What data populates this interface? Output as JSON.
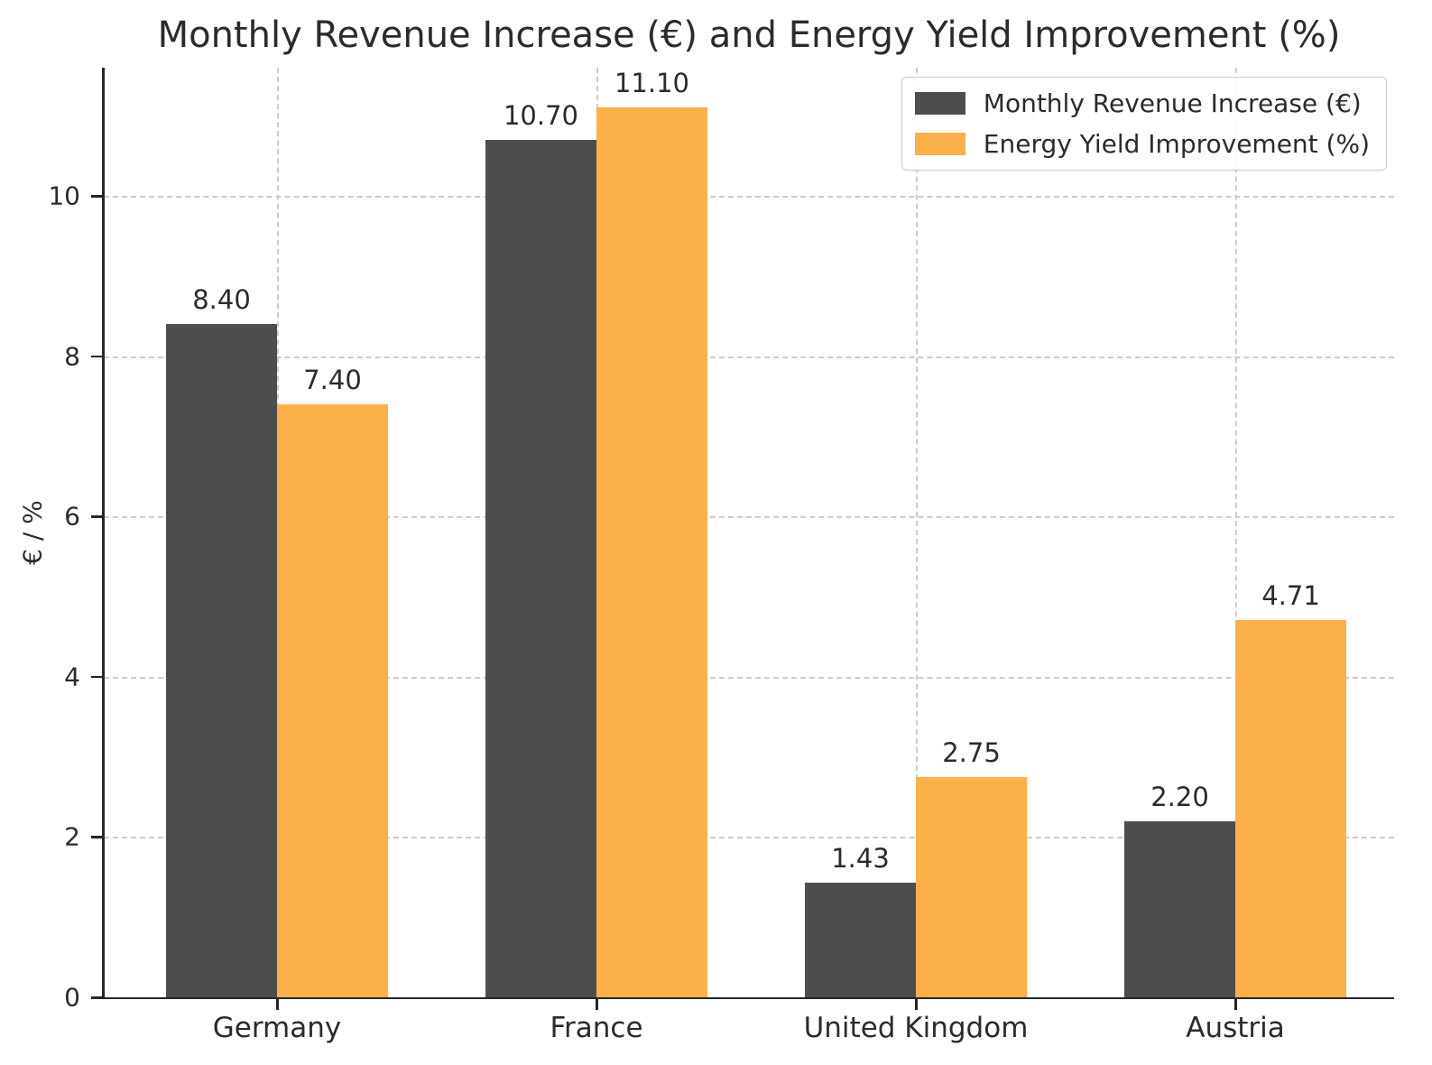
{
  "title": "Monthly Revenue Increase (€) and Energy Yield Improvement (%)",
  "chart_data": {
    "type": "bar",
    "title": "Monthly Revenue Increase (€) and Energy Yield Improvement (%)",
    "categories": [
      "Germany",
      "France",
      "United Kingdom",
      "Austria"
    ],
    "series": [
      {
        "name": "Monthly Revenue Increase (€)",
        "color": "#4d4d4d",
        "values": [
          8.4,
          10.7,
          1.43,
          2.2
        ]
      },
      {
        "name": "Energy Yield Improvement (%)",
        "color": "#fcb04a",
        "values": [
          7.4,
          11.1,
          2.75,
          4.71
        ]
      }
    ],
    "value_labels": [
      [
        "8.40",
        "10.70",
        "1.43",
        "2.20"
      ],
      [
        "7.40",
        "11.10",
        "2.75",
        "4.71"
      ]
    ],
    "xlabel": "",
    "ylabel": "€ / %",
    "ylim": [
      0,
      11.6
    ],
    "yticks": [
      0,
      2,
      4,
      6,
      8,
      10
    ],
    "grid": true,
    "grid_style": "dashed",
    "legend_position": "upper right",
    "colors": {
      "axis": "#262626",
      "grid": "#cccccc",
      "text": "#2b2b2b",
      "background": "#ffffff"
    }
  }
}
